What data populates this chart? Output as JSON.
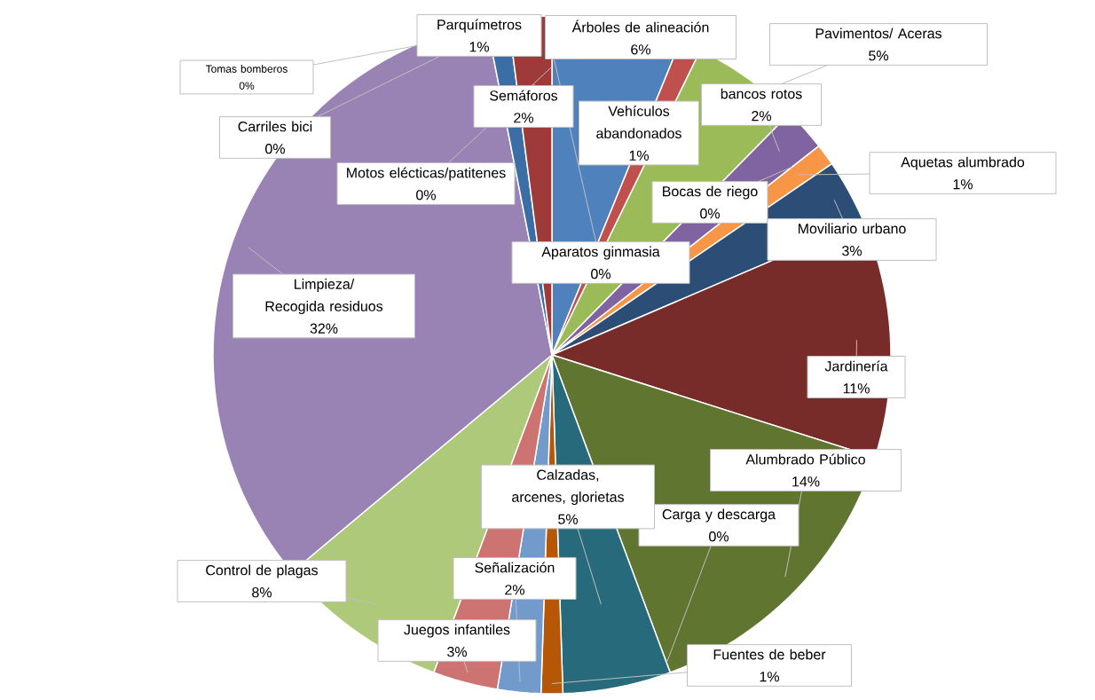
{
  "chart_data": {
    "type": "pie",
    "categories": [
      "Árboles de alineación",
      "Vehículos abandonados",
      "Pavimentos/ Aceras",
      "bancos rotos",
      "Bocas de riego",
      "Aquetas alumbrado",
      "Moviliario urbano",
      "Jardinería",
      "Alumbrado Público",
      "Carga y descarga",
      "Calzadas, arcenes, glorietas",
      "Fuentes de beber",
      "Señalización",
      "Juegos infantiles",
      "Control de plagas",
      "Limpieza/ Recogida residuos",
      "Carriles bici",
      "Tomas bomberos",
      "Parquímetros",
      "Semáforos",
      "Motos elécticas/patitenes",
      "Aparatos ginmasia"
    ],
    "values": [
      6,
      1,
      5,
      2,
      0,
      1,
      3,
      11,
      14,
      0,
      5,
      1,
      2,
      3,
      8,
      32,
      0,
      0,
      1,
      2,
      0,
      0
    ],
    "value_labels": [
      "6%",
      "1%",
      "5%",
      "2%",
      "0%",
      "1%",
      "3%",
      "11%",
      "14%",
      "0%",
      "5%",
      "1%",
      "2%",
      "3%",
      "8%",
      "32%",
      "0%",
      "0%",
      "1%",
      "2%",
      "0%",
      "0%"
    ],
    "colors": [
      "#4f81bd",
      "#c0504d",
      "#9bbb59",
      "#8064a2",
      "#4bacc6",
      "#f79646",
      "#2c4d75",
      "#772c2a",
      "#5f7530",
      "#4d3b62",
      "#276a7c",
      "#b65708",
      "#729aca",
      "#cd7371",
      "#afc97a",
      "#9983b5",
      "#6fbdd1",
      "#f9ab6b",
      "#3a6ea5",
      "#9e3b3a",
      "#7d9a47",
      "#5f497a"
    ]
  }
}
